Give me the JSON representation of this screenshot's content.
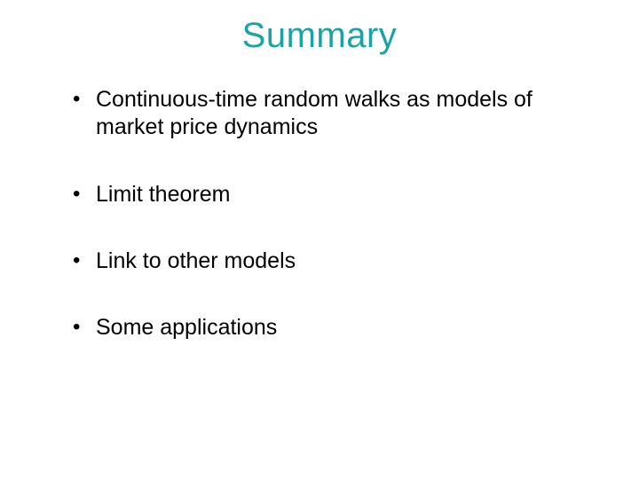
{
  "title": {
    "text": "Summary",
    "color": "#1aa3a3",
    "fontsize": 40
  },
  "bullets": [
    "Continuous-time random walks as models of market price dynamics",
    "Limit theorem",
    "Link to other models",
    "Some applications"
  ],
  "bullet_fontsize": 25,
  "bullet_color": "#000000",
  "background_color": "#ffffff"
}
